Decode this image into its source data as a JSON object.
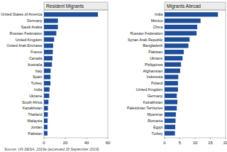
{
  "chart_data": [
    {
      "type": "bar",
      "orientation": "horizontal",
      "title": "Resident Migrants",
      "categories": [
        "United States of America",
        "Germany",
        "Saudi Arabia",
        "Russian Federation",
        "United Kingdom",
        "United Arab Emirates",
        "France",
        "Canada",
        "Australia",
        "Italy",
        "Spain",
        "Turkey",
        "India",
        "Ukraine",
        "South Africa",
        "Kazakhstan",
        "Thailand",
        "Malaysia",
        "Jordan",
        "Pakistan"
      ],
      "values": [
        50.7,
        13.1,
        13.1,
        11.6,
        9.6,
        8.6,
        8.3,
        8.0,
        7.5,
        6.3,
        6.1,
        6.1,
        5.2,
        5.0,
        4.2,
        3.7,
        3.6,
        3.4,
        3.3,
        3.3
      ],
      "color": "#1f4e99",
      "xlim": [
        0,
        60
      ],
      "xticks": [
        0,
        20,
        40,
        60
      ],
      "grid": false
    },
    {
      "type": "bar",
      "orientation": "horizontal",
      "title": "Migrants Abroad",
      "categories": [
        "India",
        "Mexico",
        "China",
        "Russian Federation",
        "Syrian Arab Republic",
        "Bangladesh",
        "Pakistan",
        "Ukraine",
        "Philippines",
        "Afghanistan",
        "Indonesia",
        "Poland",
        "United Kingdom",
        "Germany",
        "Kazakhstan",
        "Palestinian Territories",
        "Myanmar",
        "Romania",
        "Egypt",
        "Turkey"
      ],
      "values": [
        17.5,
        11.8,
        10.7,
        10.5,
        8.2,
        7.8,
        6.3,
        5.9,
        5.4,
        5.1,
        4.5,
        4.4,
        4.4,
        4.0,
        4.2,
        4.0,
        3.7,
        3.6,
        3.5,
        3.4
      ],
      "color": "#1f4e99",
      "xlim": [
        0,
        20
      ],
      "xticks": [
        0,
        5,
        10,
        15,
        20
      ],
      "grid": false
    }
  ],
  "source": "Source: UN DESA, 2019a (accessed 18 September 2019)."
}
